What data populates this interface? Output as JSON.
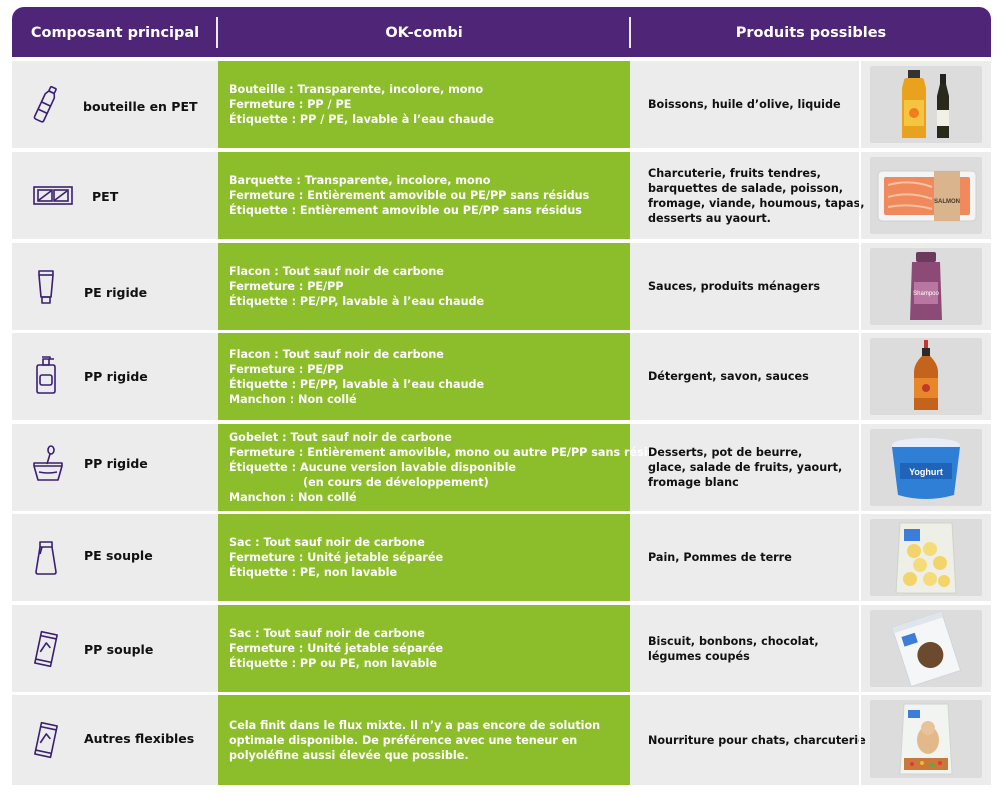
{
  "header": {
    "col1": "Composant principal",
    "col2": "OK-combi",
    "col3": "Produits possibles"
  },
  "rows": [
    {
      "icon": "pet-bottle-icon",
      "component": "bouteille en PET",
      "okcombi": [
        "Bouteille : Transparente, incolore, mono",
        "Fermeture : PP / PE",
        "Étiquette : PP / PE, lavable à l’eau chaude"
      ],
      "products": [
        "Boissons, huile d’olive, liquide"
      ],
      "image": "olive-oil-bottles-image"
    },
    {
      "icon": "tray-icon",
      "component": "PET",
      "okcombi": [
        "Barquette : Transparente, incolore, mono",
        "Fermeture : Entièrement amovible ou PE/PP sans résidus",
        "Étiquette : Entièrement amovible ou PE/PP sans résidus"
      ],
      "products": [
        "Charcuterie, fruits tendres,",
        "barquettes de salade, poisson,",
        "fromage, viande, houmous, tapas,",
        "desserts au yaourt."
      ],
      "image": "salmon-tray-image",
      "image_label": "SALMON"
    },
    {
      "icon": "tube-icon",
      "component": "PE rigide",
      "okcombi": [
        "Flacon : Tout sauf noir de carbone",
        "Fermeture : PE/PP",
        "Étiquette : PE/PP, lavable à l’eau chaude"
      ],
      "products": [
        "Sauces, produits ménagers"
      ],
      "image": "shampoo-bottle-image",
      "image_label": "Shampoo"
    },
    {
      "icon": "pump-bottle-icon",
      "component": "PP rigide",
      "okcombi": [
        "Flacon : Tout sauf noir de carbone",
        "Fermeture : PE/PP",
        "Étiquette : PE/PP, lavable à l’eau chaude",
        "Manchon : Non collé"
      ],
      "products": [
        "Détergent, savon, sauces"
      ],
      "image": "sauce-bottle-image"
    },
    {
      "icon": "cup-spoon-icon",
      "component": "PP rigide",
      "okcombi": [
        "Gobelet : Tout sauf noir de carbone",
        "Fermeture : Entièrement amovible, mono ou autre PE/PP sans résidus",
        "Étiquette : Aucune version lavable disponible",
        "                   (en cours de développement)",
        "Manchon : Non collé"
      ],
      "products": [
        "Desserts, pot de beurre,",
        "glace, salade de fruits, yaourt,",
        "fromage blanc"
      ],
      "image": "yoghurt-tub-image",
      "image_label": "Yoghurt"
    },
    {
      "icon": "bag-icon",
      "component": "PE souple",
      "okcombi": [
        "Sac : Tout sauf noir de carbone",
        "Fermeture : Unité jetable séparée",
        "Étiquette : PE, non lavable"
      ],
      "products": [
        "Pain, Pommes de terre"
      ],
      "image": "potato-bag-image"
    },
    {
      "icon": "pouch-icon",
      "component": "PP souple",
      "okcombi": [
        "Sac : Tout sauf noir de carbone",
        "Fermeture : Unité jetable séparée",
        "Étiquette : PP ou PE, non lavable"
      ],
      "products": [
        "Biscuit, bonbons, chocolat,",
        "légumes coupés"
      ],
      "image": "snack-pouch-image"
    },
    {
      "icon": "flexible-pouch-icon",
      "component": "Autres flexibles",
      "okcombi_paragraph": "Cela finit dans le flux mixte. Il n’y a pas encore de solution optimale disponible. De préférence avec une teneur en polyoléfine aussi élevée que possible.",
      "products": [
        "Nourriture pour chats, charcuterie"
      ],
      "image": "cat-food-bag-image"
    }
  ],
  "colors": {
    "header": "#4e2577",
    "green": "#8cbd2b",
    "row_bg": "#ececec",
    "icon_stroke": "#3b1f72"
  }
}
